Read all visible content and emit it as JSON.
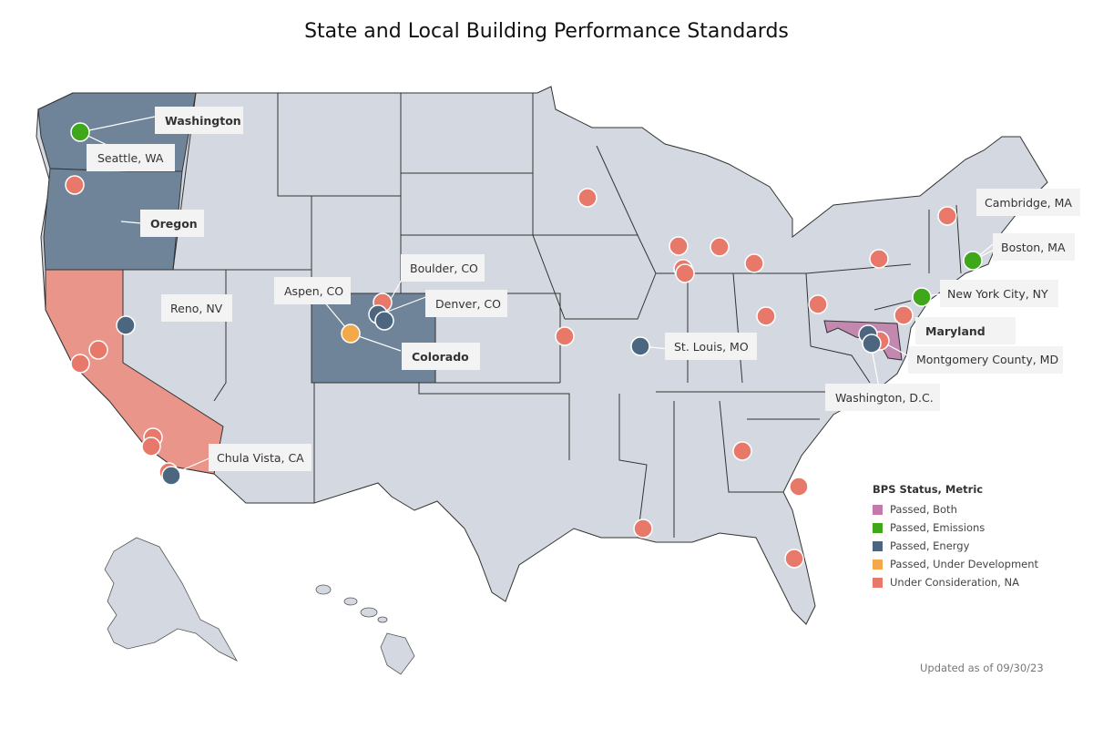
{
  "title": "State and Local Building Performance Standards",
  "updated": "Updated as of 09/30/23",
  "colors": {
    "both": "#c47aa8",
    "emissions": "#3fa71a",
    "energy": "#4d6680",
    "under_development": "#f3a84a",
    "under_consideration": "#e8796a",
    "state_default": "#d4d9e1",
    "state_energy": "#6f8498",
    "state_california": "#e9958a"
  },
  "legend": {
    "title": "BPS Status, Metric",
    "items": [
      {
        "label": "Passed, Both",
        "color": "#c47aa8"
      },
      {
        "label": "Passed, Emissions",
        "color": "#3fa71a"
      },
      {
        "label": "Passed, Energy",
        "color": "#4d6680"
      },
      {
        "label": "Passed, Under Development",
        "color": "#f3a84a"
      },
      {
        "label": "Under Consideration, NA",
        "color": "#e8796a"
      }
    ]
  },
  "labels": {
    "washington": "Washington",
    "seattle": "Seattle, WA",
    "oregon": "Oregon",
    "reno": "Reno, NV",
    "aspen": "Aspen, CO",
    "boulder": "Boulder, CO",
    "denver": "Denver, CO",
    "colorado": "Colorado",
    "chula_vista": "Chula Vista, CA",
    "st_louis": "St. Louis, MO",
    "cambridge": "Cambridge, MA",
    "boston": "Boston, MA",
    "nyc": "New York City, NY",
    "maryland": "Maryland",
    "montgomery": "Montgomery County, MD",
    "dc": "Washington, D.C."
  }
}
